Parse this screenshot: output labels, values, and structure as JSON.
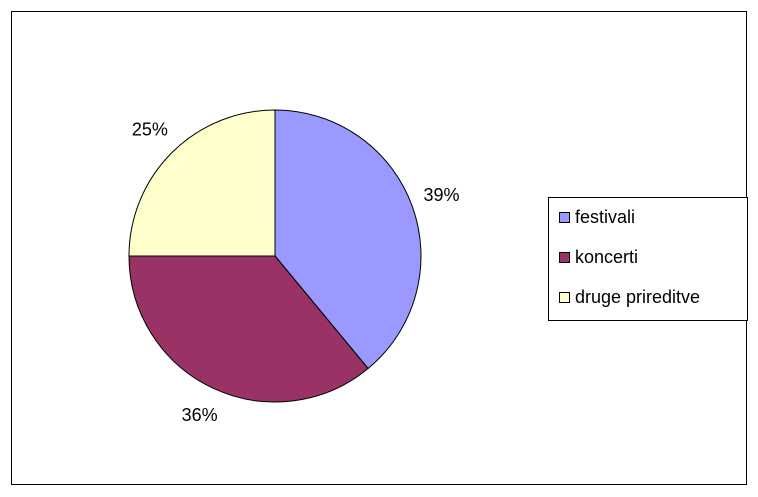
{
  "chart_data": {
    "type": "pie",
    "categories": [
      "festivali",
      "koncerti",
      "druge prireditve"
    ],
    "values": [
      39,
      36,
      25
    ],
    "value_labels": [
      "39%",
      "36%",
      "25%"
    ],
    "colors": [
      "#9999ff",
      "#993366",
      "#ffffcc"
    ],
    "title": "",
    "legend_position": "right"
  }
}
